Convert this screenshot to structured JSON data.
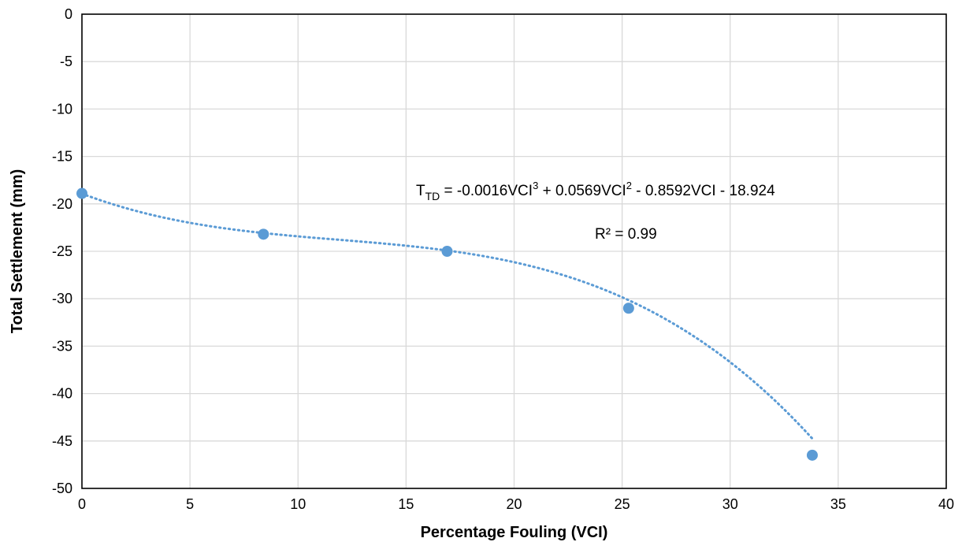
{
  "chart_data": {
    "type": "scatter",
    "xlabel": "Percentage Fouling (VCI)",
    "ylabel": "Total Settlement (mm)",
    "xlim": [
      0,
      40
    ],
    "ylim": [
      -50,
      0
    ],
    "x_ticks": [
      0,
      5,
      10,
      15,
      20,
      25,
      30,
      35,
      40
    ],
    "y_ticks": [
      0,
      -5,
      -10,
      -15,
      -20,
      -25,
      -30,
      -35,
      -40,
      -45,
      -50
    ],
    "grid": true,
    "legend": "none",
    "series": [
      {
        "x": [
          0,
          8.4,
          16.9,
          25.3,
          33.8
        ],
        "y": [
          -18.9,
          -23.2,
          -25.0,
          -31.0,
          -46.5
        ],
        "color": "#5b9bd5",
        "trendline": {
          "type": "polynomial",
          "order": 3,
          "coefficients": [
            -0.0016,
            0.0569,
            -0.8592,
            -18.924
          ],
          "style": "dotted"
        }
      }
    ],
    "annotations": {
      "equation": {
        "lhs_main": "T",
        "lhs_sub": "TD",
        "p1": " = -0.0016VCI",
        "sup3": "3",
        "p2": " + 0.0569VCI",
        "sup2": "2",
        "p3": " - 0.8592VCI - 18.924"
      },
      "r_squared": "R² = 0.99"
    }
  }
}
